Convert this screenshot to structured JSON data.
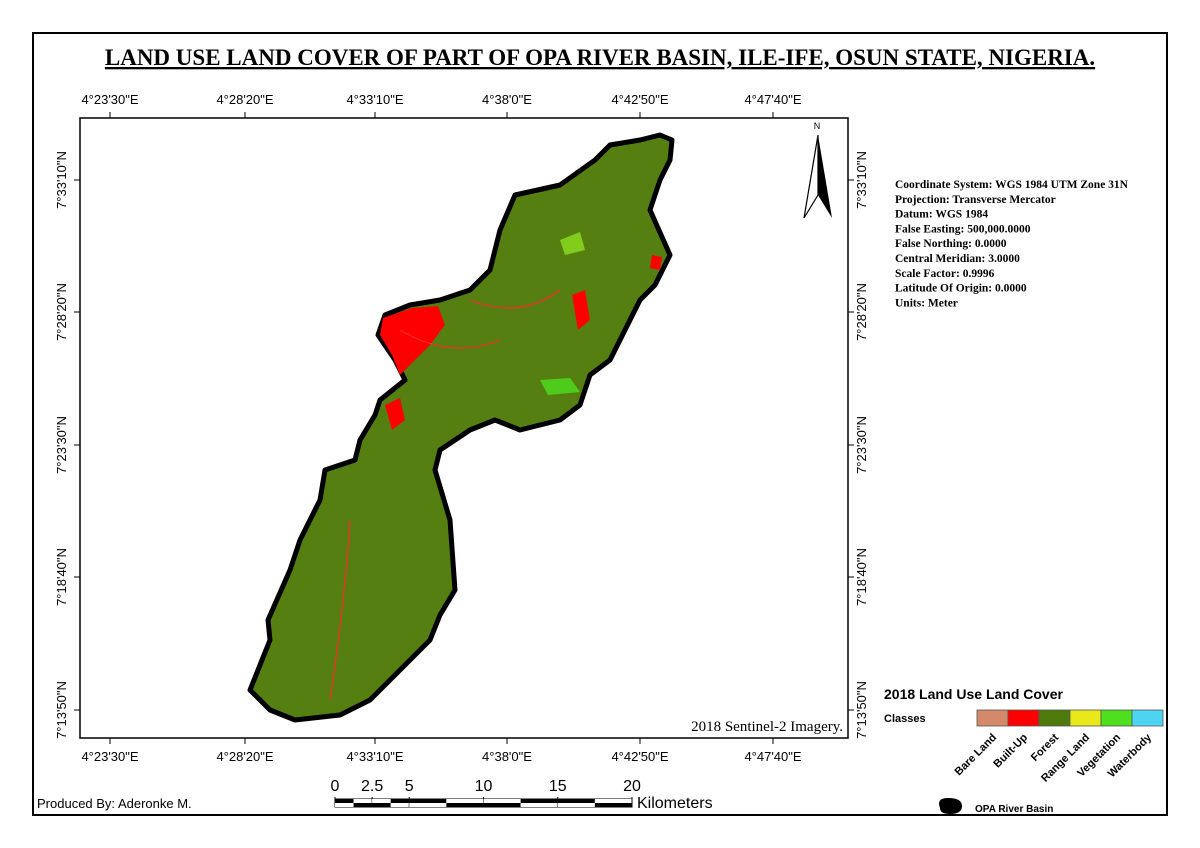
{
  "title": "LAND USE LAND COVER OF PART OF OPA RIVER BASIN, ILE-IFE, OSUN STATE, NIGERIA.",
  "longitude_labels": [
    "4°23'30\"E",
    "4°28'20\"E",
    "4°33'10\"E",
    "4°38'0\"E",
    "4°42'50\"E",
    "4°47'40\"E"
  ],
  "latitude_labels": [
    "7°33'10\"N",
    "7°28'20\"N",
    "7°23'30\"N",
    "7°18'40\"N",
    "7°13'50\"N"
  ],
  "north_label": "N",
  "imagery_note": "2018 Sentinel-2 Imagery.",
  "map_info": [
    "Coordinate System: WGS 1984 UTM Zone 31N",
    "Projection: Transverse Mercator",
    "Datum: WGS 1984",
    "False Easting: 500,000.0000",
    "False Northing: 0.0000",
    "Central Meridian: 3.0000",
    "Scale Factor: 0.9996",
    "Latitude Of Origin: 0.0000",
    "Units: Meter"
  ],
  "legend": {
    "title": "2018 Land Use Land Cover",
    "subtitle": "Classes",
    "classes": [
      {
        "name": "Bare Land",
        "color": "#d4896a"
      },
      {
        "name": "Built-Up",
        "color": "#ff0000"
      },
      {
        "name": "Forest",
        "color": "#4e7a0c"
      },
      {
        "name": "Range Land",
        "color": "#e8e81a"
      },
      {
        "name": "Vegetation",
        "color": "#4ee01e"
      },
      {
        "name": "Waterbody",
        "color": "#4dd4f0"
      }
    ],
    "boundary_label": "OPA River Basin"
  },
  "scale_bar": {
    "ticks": [
      0,
      2.5,
      5,
      10,
      15,
      20
    ],
    "unit": "Kilometers"
  },
  "credit": "Produced By: Aderonke M."
}
